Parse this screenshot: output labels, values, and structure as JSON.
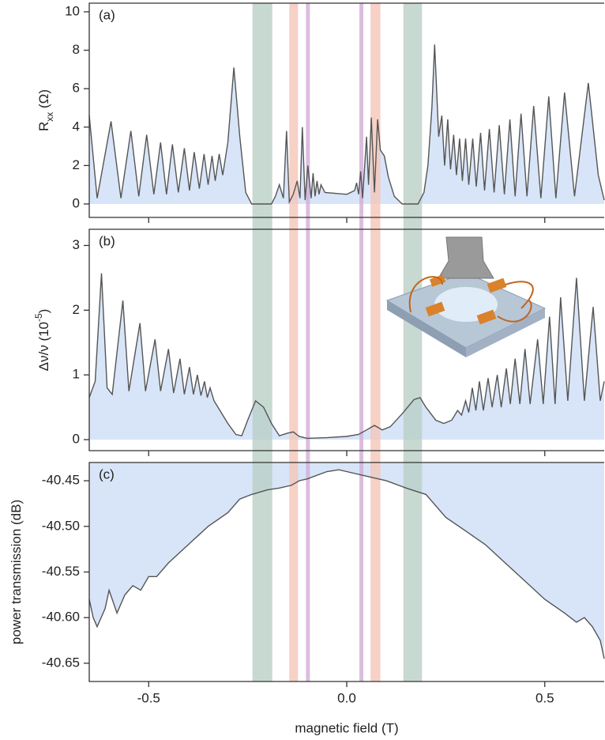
{
  "chart_data": [
    {
      "type": "line",
      "panel_label": "(a)",
      "ylabel": [
        "R",
        "xx",
        " (Ω)"
      ],
      "ylabel_style": [
        "normal",
        "sub",
        "normal"
      ],
      "xlim": [
        -0.65,
        0.65
      ],
      "xticks": [
        -0.5,
        0,
        0.5
      ],
      "ylim": [
        -0.7,
        10.45
      ],
      "yticks": [
        0,
        2,
        4,
        6,
        8,
        10
      ],
      "color": "#555555",
      "fill_color": "#d8e5f8",
      "fill_to": 0,
      "x": [
        -0.65,
        -0.63,
        -0.595,
        -0.57,
        -0.545,
        -0.525,
        -0.505,
        -0.487,
        -0.47,
        -0.455,
        -0.44,
        -0.425,
        -0.41,
        -0.397,
        -0.385,
        -0.372,
        -0.36,
        -0.35,
        -0.34,
        -0.332,
        -0.322,
        -0.313,
        -0.3,
        -0.285,
        -0.27,
        -0.255,
        -0.24,
        -0.19,
        -0.18,
        -0.17,
        -0.16,
        -0.152,
        -0.145,
        -0.135,
        -0.125,
        -0.118,
        -0.112,
        -0.105,
        -0.098,
        -0.09,
        -0.085,
        -0.08,
        -0.075,
        -0.07,
        -0.065,
        -0.055,
        0.0,
        0.02,
        0.025,
        0.03,
        0.035,
        0.04,
        0.05,
        0.055,
        0.062,
        0.07,
        0.078,
        0.085,
        0.095,
        0.105,
        0.12,
        0.14,
        0.18,
        0.195,
        0.205,
        0.215,
        0.222,
        0.232,
        0.24,
        0.247,
        0.255,
        0.262,
        0.27,
        0.277,
        0.285,
        0.292,
        0.3,
        0.308,
        0.318,
        0.327,
        0.338,
        0.348,
        0.36,
        0.372,
        0.385,
        0.398,
        0.412,
        0.425,
        0.44,
        0.455,
        0.472,
        0.49,
        0.51,
        0.528,
        0.55,
        0.575,
        0.61,
        0.635,
        0.65
      ],
      "values": [
        4.6,
        0.3,
        4.3,
        0.3,
        3.8,
        0.4,
        3.6,
        0.5,
        3.2,
        0.5,
        3.1,
        0.6,
        2.9,
        0.7,
        2.7,
        0.8,
        2.6,
        1.0,
        2.5,
        1.2,
        2.6,
        1.5,
        3.2,
        7.1,
        3.5,
        0.6,
        0,
        0,
        0.4,
        1.0,
        0.3,
        3.8,
        0.1,
        0.5,
        1.2,
        0.3,
        4.0,
        0.2,
        2.0,
        0.3,
        1.6,
        0.4,
        1.2,
        0.5,
        1.0,
        0.6,
        0.5,
        0.7,
        1.1,
        0.5,
        1.7,
        0.3,
        3.5,
        1.0,
        4.5,
        0.6,
        4.4,
        2.8,
        2.5,
        1.4,
        0.4,
        0,
        0,
        0.6,
        2.0,
        5.0,
        8.3,
        3.5,
        4.6,
        2.0,
        4.4,
        1.8,
        3.6,
        1.5,
        3.4,
        1.2,
        3.4,
        1.0,
        3.4,
        0.9,
        3.7,
        0.7,
        3.9,
        0.6,
        4.1,
        0.5,
        4.4,
        0.4,
        4.7,
        0.4,
        5.1,
        0.3,
        5.6,
        0.3,
        5.8,
        0.4,
        6.3,
        1.5,
        0.2
      ]
    },
    {
      "type": "line",
      "panel_label": "(b)",
      "ylabel": [
        "Δν/ν (10",
        "-5",
        ")"
      ],
      "ylabel_style": [
        "normal",
        "sup",
        "normal"
      ],
      "xlim": [
        -0.65,
        0.65
      ],
      "xticks": [
        -0.5,
        0,
        0.5
      ],
      "ylim": [
        -0.17,
        3.25
      ],
      "yticks": [
        0,
        1,
        2,
        3
      ],
      "color": "#555555",
      "fill_color": "#d8e5f8",
      "fill_to": 0,
      "x": [
        -0.65,
        -0.635,
        -0.619,
        -0.605,
        -0.592,
        -0.565,
        -0.55,
        -0.522,
        -0.508,
        -0.484,
        -0.47,
        -0.45,
        -0.437,
        -0.421,
        -0.41,
        -0.397,
        -0.387,
        -0.377,
        -0.368,
        -0.359,
        -0.352,
        -0.345,
        -0.335,
        -0.32,
        -0.3,
        -0.28,
        -0.265,
        -0.25,
        -0.23,
        -0.21,
        -0.19,
        -0.17,
        -0.15,
        -0.135,
        -0.12,
        -0.1,
        -0.05,
        0.0,
        0.03,
        0.05,
        0.07,
        0.09,
        0.11,
        0.14,
        0.17,
        0.185,
        0.2,
        0.225,
        0.245,
        0.265,
        0.28,
        0.29,
        0.3,
        0.308,
        0.317,
        0.326,
        0.335,
        0.345,
        0.357,
        0.367,
        0.38,
        0.39,
        0.403,
        0.413,
        0.425,
        0.437,
        0.45,
        0.463,
        0.482,
        0.496,
        0.512,
        0.526,
        0.54,
        0.558,
        0.58,
        0.6,
        0.622,
        0.64,
        0.65
      ],
      "values": [
        0.65,
        0.9,
        2.57,
        0.8,
        0.7,
        2.15,
        0.75,
        1.8,
        0.75,
        1.55,
        0.75,
        1.4,
        0.72,
        1.25,
        0.7,
        1.12,
        0.7,
        1.0,
        0.68,
        0.9,
        0.65,
        0.8,
        0.6,
        0.45,
        0.25,
        0.08,
        0.06,
        0.3,
        0.6,
        0.5,
        0.25,
        0.06,
        0.1,
        0.12,
        0.05,
        0.02,
        0.03,
        0.05,
        0.08,
        0.15,
        0.22,
        0.15,
        0.2,
        0.4,
        0.62,
        0.65,
        0.5,
        0.3,
        0.25,
        0.3,
        0.45,
        0.38,
        0.6,
        0.42,
        0.8,
        0.45,
        0.9,
        0.45,
        0.95,
        0.5,
        1.0,
        0.5,
        1.1,
        0.55,
        1.25,
        0.55,
        1.4,
        0.55,
        1.55,
        0.55,
        1.9,
        0.55,
        2.2,
        0.6,
        2.5,
        0.6,
        2.05,
        0.6,
        0.9
      ]
    },
    {
      "type": "line",
      "panel_label": "(c)",
      "ylabel": [
        "power transmission (dB)"
      ],
      "ylabel_style": [
        "normal"
      ],
      "xlabel": "magnetic field (T)",
      "xlim": [
        -0.65,
        0.65
      ],
      "xticks": [
        -0.5,
        {
          "value": 0,
          "label": "0.0"
        },
        0.5
      ],
      "ylim": [
        -40.67,
        -40.43
      ],
      "yticks": [
        -40.45,
        {
          "value": -40.5,
          "label": "-40.50"
        },
        -40.55,
        {
          "value": -40.6,
          "label": "-40.60"
        },
        -40.65
      ],
      "color": "#555555",
      "fill_color": "#d8e5f8",
      "fill_to": "top",
      "x": [
        -0.65,
        -0.64,
        -0.63,
        -0.61,
        -0.6,
        -0.58,
        -0.56,
        -0.54,
        -0.52,
        -0.5,
        -0.48,
        -0.45,
        -0.4,
        -0.35,
        -0.3,
        -0.27,
        -0.24,
        -0.2,
        -0.17,
        -0.14,
        -0.12,
        -0.1,
        -0.05,
        -0.02,
        0.0,
        0.05,
        0.1,
        0.15,
        0.2,
        0.25,
        0.3,
        0.35,
        0.4,
        0.45,
        0.5,
        0.55,
        0.58,
        0.6,
        0.62,
        0.64,
        0.65
      ],
      "values": [
        -40.58,
        -40.6,
        -40.61,
        -40.59,
        -40.57,
        -40.595,
        -40.575,
        -40.565,
        -40.57,
        -40.555,
        -40.555,
        -40.54,
        -40.52,
        -40.5,
        -40.485,
        -40.47,
        -40.465,
        -40.46,
        -40.458,
        -40.455,
        -40.45,
        -40.448,
        -40.44,
        -40.438,
        -40.44,
        -40.445,
        -40.45,
        -40.458,
        -40.465,
        -40.49,
        -40.505,
        -40.52,
        -40.54,
        -40.56,
        -40.58,
        -40.595,
        -40.605,
        -40.6,
        -40.61,
        -40.625,
        -40.645
      ]
    }
  ],
  "bands": [
    {
      "x0": -0.238,
      "x1": -0.188,
      "color": "#b9cfc6"
    },
    {
      "x0": -0.145,
      "x1": -0.123,
      "color": "#f5c6b8"
    },
    {
      "x0": -0.103,
      "x1": -0.093,
      "color": "#d2acd6"
    },
    {
      "x0": 0.032,
      "x1": 0.042,
      "color": "#d2acd6"
    },
    {
      "x0": 0.06,
      "x1": 0.085,
      "color": "#f5c6b8"
    },
    {
      "x0": 0.143,
      "x1": 0.19,
      "color": "#b9cfc6"
    }
  ]
}
